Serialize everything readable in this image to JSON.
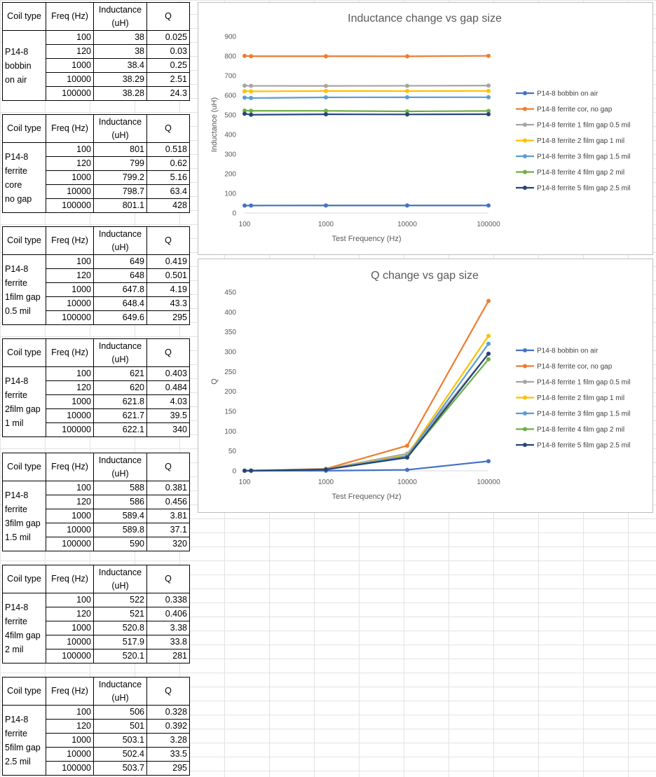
{
  "tables": [
    {
      "coil": "P14-8\nbobbin\non air",
      "rows": [
        [
          "100",
          "38",
          "0.025"
        ],
        [
          "120",
          "38",
          "0.03"
        ],
        [
          "1000",
          "38.4",
          "0.25"
        ],
        [
          "10000",
          "38.29",
          "2.51"
        ],
        [
          "100000",
          "38.28",
          "24.3"
        ]
      ]
    },
    {
      "coil": "P14-8\nferrite\ncore\nno gap",
      "rows": [
        [
          "100",
          "801",
          "0.518"
        ],
        [
          "120",
          "799",
          "0.62"
        ],
        [
          "1000",
          "799.2",
          "5.16"
        ],
        [
          "10000",
          "798.7",
          "63.4"
        ],
        [
          "100000",
          "801.1",
          "428"
        ]
      ]
    },
    {
      "coil": "P14-8\nferrite\n1film gap\n0.5 mil",
      "rows": [
        [
          "100",
          "649",
          "0.419"
        ],
        [
          "120",
          "648",
          "0.501"
        ],
        [
          "1000",
          "647.8",
          "4.19"
        ],
        [
          "10000",
          "648.4",
          "43.3"
        ],
        [
          "100000",
          "649.6",
          "295"
        ]
      ]
    },
    {
      "coil": "P14-8\nferrite\n2film gap\n1 mil",
      "rows": [
        [
          "100",
          "621",
          "0.403"
        ],
        [
          "120",
          "620",
          "0.484"
        ],
        [
          "1000",
          "621.8",
          "4.03"
        ],
        [
          "10000",
          "621.7",
          "39.5"
        ],
        [
          "100000",
          "622.1",
          "340"
        ]
      ]
    },
    {
      "coil": "P14-8\nferrite\n3film gap\n1.5 mil",
      "rows": [
        [
          "100",
          "588",
          "0.381"
        ],
        [
          "120",
          "586",
          "0.456"
        ],
        [
          "1000",
          "589.4",
          "3.81"
        ],
        [
          "10000",
          "589.8",
          "37.1"
        ],
        [
          "100000",
          "590",
          "320"
        ]
      ]
    },
    {
      "coil": "P14-8\nferrite\n4film gap\n2 mil",
      "rows": [
        [
          "100",
          "522",
          "0.338"
        ],
        [
          "120",
          "521",
          "0.406"
        ],
        [
          "1000",
          "520.8",
          "3.38"
        ],
        [
          "10000",
          "517.9",
          "33.8"
        ],
        [
          "100000",
          "520.1",
          "281"
        ]
      ]
    },
    {
      "coil": "P14-8\nferrite\n5film gap\n2.5 mil",
      "rows": [
        [
          "100",
          "506",
          "0.328"
        ],
        [
          "120",
          "501",
          "0.392"
        ],
        [
          "1000",
          "503.1",
          "3.28"
        ],
        [
          "10000",
          "502.4",
          "33.5"
        ],
        [
          "100000",
          "503.7",
          "295"
        ]
      ]
    }
  ],
  "table_headers": {
    "coil_type": "Coil type",
    "freq": "Freq (Hz)",
    "inductance": "Inductance\n(uH)",
    "q": "Q"
  },
  "chart_data": [
    {
      "type": "line",
      "title": "Inductance change vs gap size",
      "xlabel": "Test Frequency (Hz)",
      "ylabel": "Inductance (uH)",
      "xscale": "log",
      "xticks": [
        "100",
        "1000",
        "10000",
        "100000"
      ],
      "ylim": [
        0,
        900
      ],
      "yticks": [
        0,
        100,
        200,
        300,
        400,
        500,
        600,
        700,
        800,
        900
      ],
      "grid": false,
      "legend": "right",
      "x": [
        100,
        120,
        1000,
        10000,
        100000
      ],
      "series": [
        {
          "name": "P14-8 bobbin on air",
          "color": "#4472c4",
          "values": [
            38,
            38,
            38.4,
            38.29,
            38.28
          ]
        },
        {
          "name": "P14-8 ferrite cor, no gap",
          "color": "#ed7d31",
          "values": [
            801,
            799,
            799.2,
            798.7,
            801.1
          ]
        },
        {
          "name": "P14-8 ferrite  1 film gap 0.5 mil",
          "color": "#a5a5a5",
          "values": [
            649,
            648,
            647.8,
            648.4,
            649.6
          ]
        },
        {
          "name": "P14-8 ferrite  2 film gap 1 mil",
          "color": "#ffc000",
          "values": [
            621,
            620,
            621.8,
            621.7,
            622.1
          ]
        },
        {
          "name": "P14-8 ferrite  3 film gap 1.5 mil",
          "color": "#5b9bd5",
          "values": [
            588,
            586,
            589.4,
            589.8,
            590
          ]
        },
        {
          "name": "P14-8 ferrite  4 film gap 2 mil",
          "color": "#70ad47",
          "values": [
            522,
            521,
            520.8,
            517.9,
            520.1
          ]
        },
        {
          "name": "P14-8 ferrite  5 film gap 2.5 mil",
          "color": "#264478",
          "values": [
            506,
            501,
            503.1,
            502.4,
            503.7
          ]
        }
      ]
    },
    {
      "type": "line",
      "title": "Q change vs gap size",
      "xlabel": "Test Frequency (Hz)",
      "ylabel": "Q",
      "xscale": "log",
      "xticks": [
        "100",
        "1000",
        "10000",
        "100000"
      ],
      "ylim": [
        0,
        450
      ],
      "yticks": [
        0,
        50,
        100,
        150,
        200,
        250,
        300,
        350,
        400,
        450
      ],
      "grid": false,
      "legend": "right",
      "x": [
        100,
        120,
        1000,
        10000,
        100000
      ],
      "series": [
        {
          "name": "P14-8 bobbin on air",
          "color": "#4472c4",
          "values": [
            0.025,
            0.03,
            0.25,
            2.51,
            24.3
          ]
        },
        {
          "name": "P14-8 ferrite cor, no gap",
          "color": "#ed7d31",
          "values": [
            0.518,
            0.62,
            5.16,
            63.4,
            428
          ]
        },
        {
          "name": "P14-8 ferrite  1 film gap 0.5 mil",
          "color": "#a5a5a5",
          "values": [
            0.419,
            0.501,
            4.19,
            43.3,
            295
          ]
        },
        {
          "name": "P14-8 ferrite  2 film gap 1 mil",
          "color": "#ffc000",
          "values": [
            0.403,
            0.484,
            4.03,
            39.5,
            340
          ]
        },
        {
          "name": "P14-8 ferrite  3 film gap 1.5 mil",
          "color": "#5b9bd5",
          "values": [
            0.381,
            0.456,
            3.81,
            37.1,
            320
          ]
        },
        {
          "name": "P14-8 ferrite  4 film gap 2 mil",
          "color": "#70ad47",
          "values": [
            0.338,
            0.406,
            3.38,
            33.8,
            281
          ]
        },
        {
          "name": "P14-8 ferrite  5 film gap 2.5 mil",
          "color": "#264478",
          "values": [
            0.328,
            0.392,
            3.28,
            33.5,
            295
          ]
        }
      ]
    }
  ]
}
